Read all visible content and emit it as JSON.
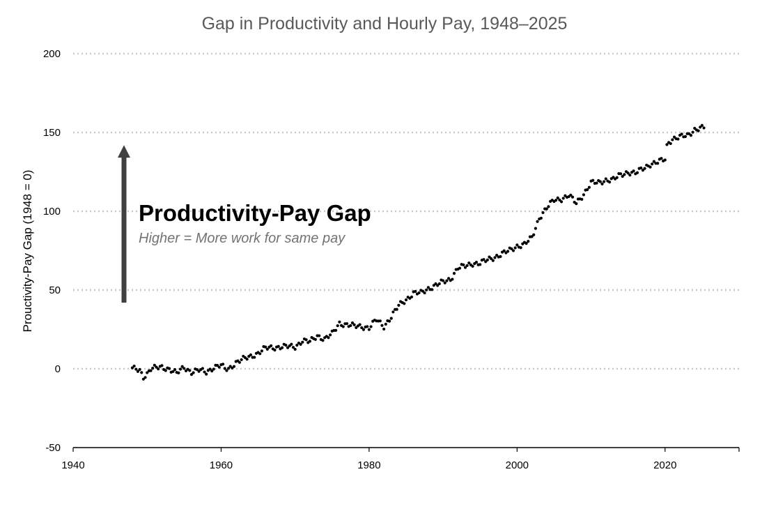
{
  "chart_data": {
    "type": "scatter",
    "title": "Gap in Productivity and Hourly Pay, 1948–2025",
    "xlabel": "",
    "ylabel": "Prouctivity-Pay Gap (1948 = 0)",
    "xlim": [
      1940,
      2030
    ],
    "ylim": [
      -50,
      200
    ],
    "x_ticks": [
      1940,
      1960,
      1980,
      2000,
      2020
    ],
    "x_tick_labels": [
      "1940",
      "1960",
      "1980",
      "2000",
      "2020"
    ],
    "y_ticks": [
      -50,
      0,
      50,
      100,
      150,
      200
    ],
    "y_tick_labels": [
      "-50",
      "0",
      "50",
      "100",
      "150",
      "200"
    ],
    "grid": "horizontal dotted",
    "point_color": "#000000",
    "arrow_color": "#404040",
    "annotation": {
      "title": "Productivity-Pay Gap",
      "subtitle": "Higher = More work for same pay",
      "arrow_from_y": 42,
      "arrow_to_y": 142
    },
    "anchors": [
      [
        1948.0,
        0
      ],
      [
        1949.0,
        -1
      ],
      [
        1949.5,
        -5
      ],
      [
        1950.0,
        -3
      ],
      [
        1950.5,
        0
      ],
      [
        1952.0,
        1
      ],
      [
        1953.0,
        0
      ],
      [
        1954.0,
        -3
      ],
      [
        1955.0,
        1
      ],
      [
        1956.0,
        -2
      ],
      [
        1957.0,
        -1
      ],
      [
        1958.0,
        -2
      ],
      [
        1959.0,
        1
      ],
      [
        1960.0,
        2
      ],
      [
        1960.5,
        0
      ],
      [
        1961.0,
        0
      ],
      [
        1962.0,
        4
      ],
      [
        1963.0,
        6
      ],
      [
        1964.0,
        8
      ],
      [
        1965.0,
        10
      ],
      [
        1966.0,
        13
      ],
      [
        1968.0,
        14
      ],
      [
        1969.0,
        14
      ],
      [
        1970.0,
        14
      ],
      [
        1971.0,
        18
      ],
      [
        1972.0,
        17
      ],
      [
        1973.0,
        21
      ],
      [
        1974.0,
        19
      ],
      [
        1975.0,
        22
      ],
      [
        1976.0,
        29
      ],
      [
        1977.0,
        28
      ],
      [
        1978.0,
        27
      ],
      [
        1979.0,
        27
      ],
      [
        1980.0,
        26
      ],
      [
        1981.0,
        31
      ],
      [
        1982.0,
        27
      ],
      [
        1983.0,
        33
      ],
      [
        1984.0,
        40
      ],
      [
        1985.0,
        44
      ],
      [
        1986.0,
        48
      ],
      [
        1987.0,
        48
      ],
      [
        1988.0,
        51
      ],
      [
        1989.0,
        53
      ],
      [
        1990.0,
        55
      ],
      [
        1991.0,
        57
      ],
      [
        1992.0,
        64
      ],
      [
        1993.0,
        65
      ],
      [
        1994.0,
        67
      ],
      [
        1995.0,
        67
      ],
      [
        1996.0,
        69
      ],
      [
        1997.0,
        71
      ],
      [
        1998.0,
        73
      ],
      [
        1999.0,
        75
      ],
      [
        2000.0,
        78
      ],
      [
        2001.0,
        79
      ],
      [
        2002.0,
        83
      ],
      [
        2003.0,
        96
      ],
      [
        2004.0,
        102
      ],
      [
        2005.0,
        107
      ],
      [
        2006.0,
        108
      ],
      [
        2007.0,
        110
      ],
      [
        2008.0,
        105
      ],
      [
        2009.0,
        111
      ],
      [
        2010.0,
        118
      ],
      [
        2011.0,
        118
      ],
      [
        2012.0,
        120
      ],
      [
        2013.0,
        120
      ],
      [
        2014.0,
        123
      ],
      [
        2015.0,
        125
      ],
      [
        2016.0,
        124
      ],
      [
        2017.0,
        127
      ],
      [
        2018.0,
        130
      ],
      [
        2019.0,
        131
      ],
      [
        2020.0,
        133
      ],
      [
        2020.3,
        143
      ],
      [
        2021.0,
        146
      ],
      [
        2022.0,
        147
      ],
      [
        2023.0,
        148
      ],
      [
        2024.0,
        152
      ],
      [
        2025.3,
        153
      ]
    ],
    "points_per_year": 4,
    "x_start": 1948.0,
    "x_end": 2025.25
  }
}
